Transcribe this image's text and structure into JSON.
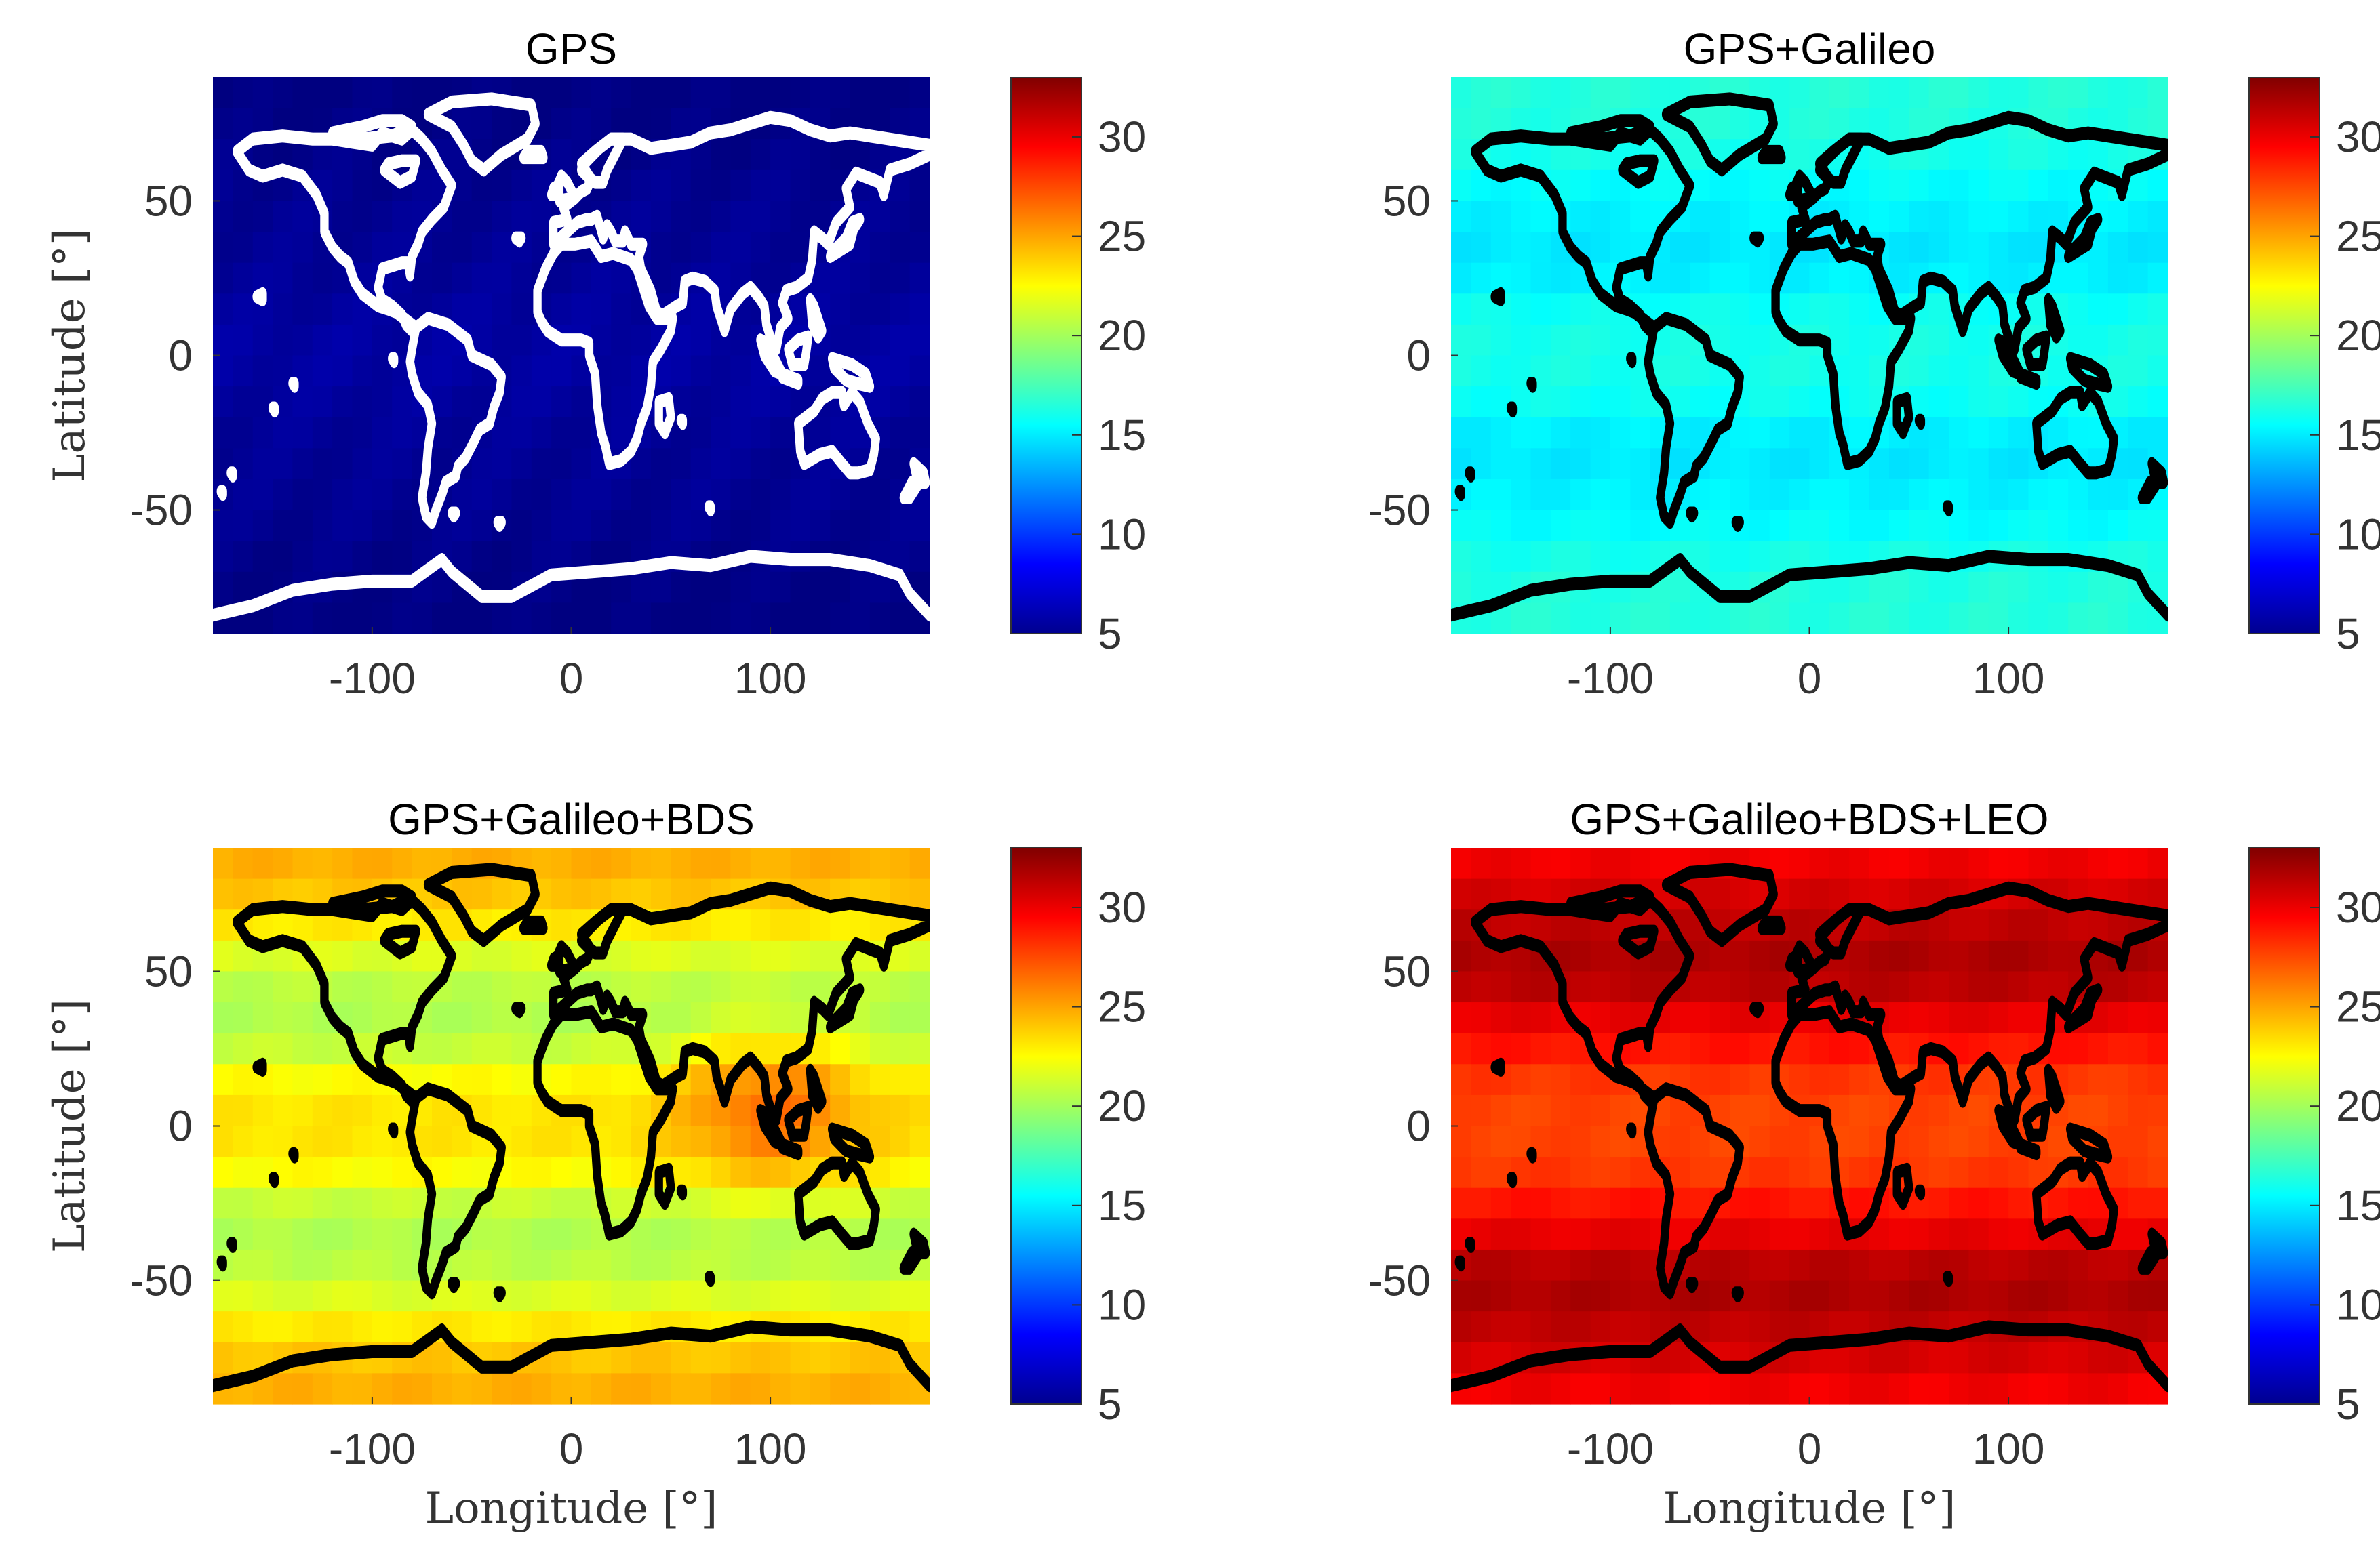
{
  "figure": {
    "layout": "2x2"
  },
  "chart_data": [
    {
      "type": "heatmap",
      "title": "GPS",
      "xlabel": "",
      "ylabel": "Latitude [°]",
      "xlim": [
        -180,
        180
      ],
      "ylim": [
        -90,
        90
      ],
      "xticks": [
        -100,
        0,
        100
      ],
      "yticks": [
        -50,
        0,
        50
      ],
      "colorbar": {
        "colormap": "jet",
        "range": [
          5,
          33
        ],
        "ticks": [
          5,
          10,
          15,
          20,
          25,
          30
        ]
      },
      "lat_profile": {
        "lat": [
          90,
          70,
          50,
          30,
          15,
          0,
          -15,
          -30,
          -50,
          -70,
          -90
        ],
        "value": [
          5.0,
          5.2,
          5.5,
          5.6,
          5.8,
          6.0,
          5.8,
          5.6,
          5.5,
          5.2,
          5.0
        ]
      },
      "coastline_color": "#ffffff"
    },
    {
      "type": "heatmap",
      "title": "GPS+Galileo",
      "xlabel": "",
      "ylabel": "",
      "xlim": [
        -180,
        180
      ],
      "ylim": [
        -90,
        90
      ],
      "xticks": [
        -100,
        0,
        100
      ],
      "yticks": [
        -50,
        0,
        50
      ],
      "colorbar": {
        "colormap": "jet",
        "range": [
          5,
          33
        ],
        "ticks": [
          5,
          10,
          15,
          20,
          25,
          30
        ]
      },
      "lat_profile": {
        "lat": [
          90,
          70,
          50,
          30,
          15,
          0,
          -15,
          -30,
          -50,
          -70,
          -90
        ],
        "value": [
          16.5,
          16.3,
          15.3,
          14.8,
          15.8,
          16.2,
          15.8,
          14.8,
          15.3,
          16.3,
          16.5
        ]
      },
      "coastline_color": "#000000"
    },
    {
      "type": "heatmap",
      "title": "GPS+Galileo+BDS",
      "xlabel": "Longitude [°]",
      "ylabel": "Latitude [°]",
      "xlim": [
        -180,
        180
      ],
      "ylim": [
        -90,
        90
      ],
      "xticks": [
        -100,
        0,
        100
      ],
      "yticks": [
        -50,
        0,
        50
      ],
      "colorbar": {
        "colormap": "jet",
        "range": [
          5,
          33
        ],
        "ticks": [
          5,
          10,
          15,
          20,
          25,
          30
        ]
      },
      "lat_profile": {
        "lat": [
          90,
          70,
          50,
          30,
          15,
          0,
          -15,
          -30,
          -50,
          -70,
          -90
        ],
        "value": [
          25.0,
          23.8,
          20.8,
          20.2,
          22.5,
          23.5,
          22.5,
          20.2,
          20.8,
          23.8,
          25.0
        ]
      },
      "hotspot": {
        "lon": 100,
        "lat": 5,
        "value": 26.5
      },
      "coastline_color": "#000000"
    },
    {
      "type": "heatmap",
      "title": "GPS+Galileo+BDS+LEO",
      "xlabel": "Longitude [°]",
      "ylabel": "",
      "xlim": [
        -180,
        180
      ],
      "ylim": [
        -90,
        90
      ],
      "xticks": [
        -100,
        0,
        100
      ],
      "yticks": [
        -50,
        0,
        50
      ],
      "colorbar": {
        "colormap": "jet",
        "range": [
          5,
          33
        ],
        "ticks": [
          5,
          10,
          15,
          20,
          25,
          30
        ]
      },
      "lat_profile": {
        "lat": [
          90,
          70,
          50,
          30,
          15,
          0,
          -15,
          -30,
          -50,
          -70,
          -90
        ],
        "value": [
          29.5,
          31.0,
          32.0,
          29.5,
          28.0,
          27.5,
          28.0,
          29.5,
          32.0,
          31.0,
          29.5
        ]
      },
      "coastline_color": "#000000"
    }
  ]
}
